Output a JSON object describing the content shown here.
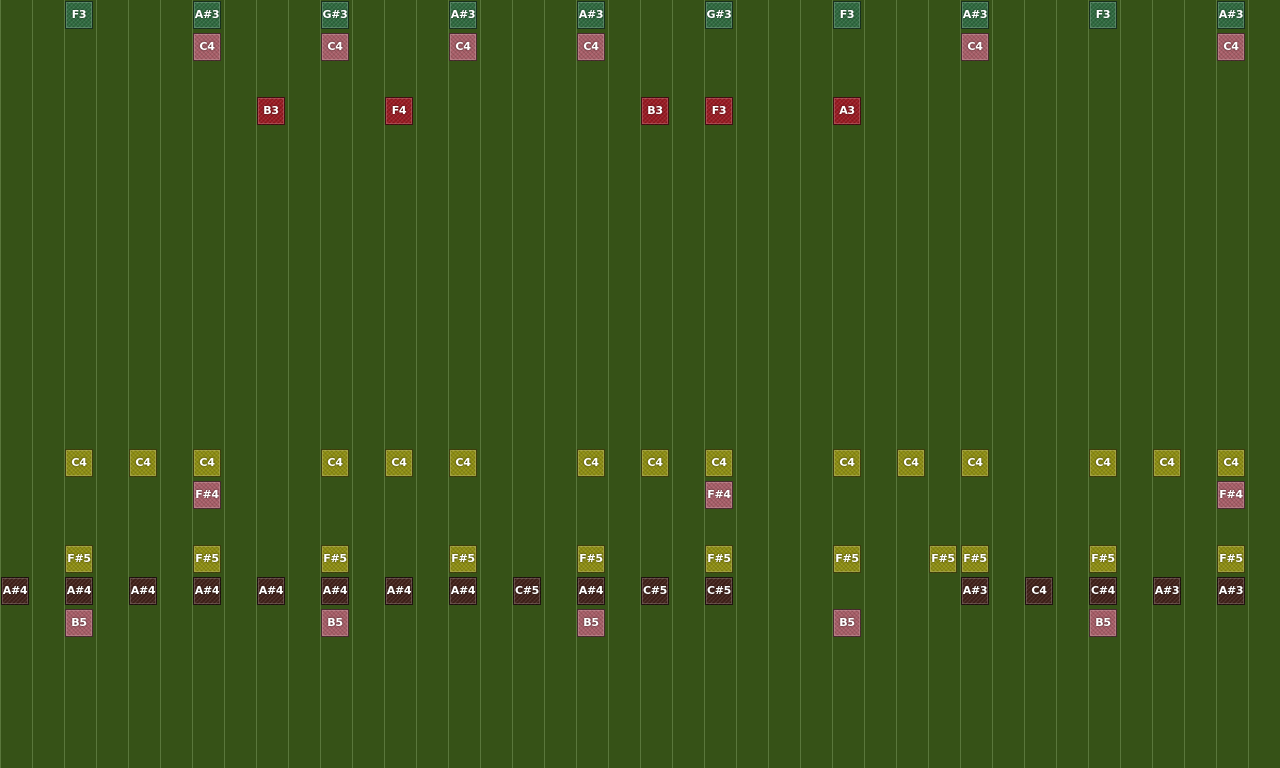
{
  "board": {
    "columns": 40,
    "lanes": 24
  },
  "palette": {
    "green": "#2f6a3f",
    "pink": "#a85e68",
    "red": "#9a1a22",
    "yellow": "#8e8e12",
    "maroon": "#42211a"
  },
  "notes": [
    {
      "label": "F3",
      "color": "green",
      "col": 2,
      "lane": 0
    },
    {
      "label": "A#3",
      "color": "green",
      "col": 6,
      "lane": 0
    },
    {
      "label": "G#3",
      "color": "green",
      "col": 10,
      "lane": 0
    },
    {
      "label": "A#3",
      "color": "green",
      "col": 14,
      "lane": 0
    },
    {
      "label": "A#3",
      "color": "green",
      "col": 18,
      "lane": 0
    },
    {
      "label": "G#3",
      "color": "green",
      "col": 22,
      "lane": 0
    },
    {
      "label": "F3",
      "color": "green",
      "col": 26,
      "lane": 0
    },
    {
      "label": "A#3",
      "color": "green",
      "col": 30,
      "lane": 0
    },
    {
      "label": "F3",
      "color": "green",
      "col": 34,
      "lane": 0
    },
    {
      "label": "A#3",
      "color": "green",
      "col": 38,
      "lane": 0
    },
    {
      "label": "C4",
      "color": "pink",
      "col": 6,
      "lane": 1
    },
    {
      "label": "C4",
      "color": "pink",
      "col": 10,
      "lane": 1
    },
    {
      "label": "C4",
      "color": "pink",
      "col": 14,
      "lane": 1
    },
    {
      "label": "C4",
      "color": "pink",
      "col": 18,
      "lane": 1
    },
    {
      "label": "C4",
      "color": "pink",
      "col": 30,
      "lane": 1
    },
    {
      "label": "C4",
      "color": "pink",
      "col": 38,
      "lane": 1
    },
    {
      "label": "B3",
      "color": "red",
      "col": 8,
      "lane": 3
    },
    {
      "label": "F4",
      "color": "red",
      "col": 12,
      "lane": 3
    },
    {
      "label": "B3",
      "color": "red",
      "col": 20,
      "lane": 3
    },
    {
      "label": "F3",
      "color": "red",
      "col": 22,
      "lane": 3
    },
    {
      "label": "A3",
      "color": "red",
      "col": 26,
      "lane": 3
    },
    {
      "label": "C4",
      "color": "yellow",
      "col": 2,
      "lane": 14
    },
    {
      "label": "C4",
      "color": "yellow",
      "col": 4,
      "lane": 14
    },
    {
      "label": "C4",
      "color": "yellow",
      "col": 6,
      "lane": 14
    },
    {
      "label": "C4",
      "color": "yellow",
      "col": 10,
      "lane": 14
    },
    {
      "label": "C4",
      "color": "yellow",
      "col": 12,
      "lane": 14
    },
    {
      "label": "C4",
      "color": "yellow",
      "col": 14,
      "lane": 14
    },
    {
      "label": "C4",
      "color": "yellow",
      "col": 18,
      "lane": 14
    },
    {
      "label": "C4",
      "color": "yellow",
      "col": 20,
      "lane": 14
    },
    {
      "label": "C4",
      "color": "yellow",
      "col": 22,
      "lane": 14
    },
    {
      "label": "C4",
      "color": "yellow",
      "col": 26,
      "lane": 14
    },
    {
      "label": "C4",
      "color": "yellow",
      "col": 28,
      "lane": 14
    },
    {
      "label": "C4",
      "color": "yellow",
      "col": 30,
      "lane": 14
    },
    {
      "label": "C4",
      "color": "yellow",
      "col": 34,
      "lane": 14
    },
    {
      "label": "C4",
      "color": "yellow",
      "col": 36,
      "lane": 14
    },
    {
      "label": "C4",
      "color": "yellow",
      "col": 38,
      "lane": 14
    },
    {
      "label": "F#4",
      "color": "pink",
      "col": 6,
      "lane": 15
    },
    {
      "label": "F#4",
      "color": "pink",
      "col": 22,
      "lane": 15
    },
    {
      "label": "F#4",
      "color": "pink",
      "col": 38,
      "lane": 15
    },
    {
      "label": "F#5",
      "color": "yellow",
      "col": 2,
      "lane": 17
    },
    {
      "label": "F#5",
      "color": "yellow",
      "col": 6,
      "lane": 17
    },
    {
      "label": "F#5",
      "color": "yellow",
      "col": 10,
      "lane": 17
    },
    {
      "label": "F#5",
      "color": "yellow",
      "col": 14,
      "lane": 17
    },
    {
      "label": "F#5",
      "color": "yellow",
      "col": 18,
      "lane": 17
    },
    {
      "label": "F#5",
      "color": "yellow",
      "col": 22,
      "lane": 17
    },
    {
      "label": "F#5",
      "color": "yellow",
      "col": 26,
      "lane": 17
    },
    {
      "label": "F#5",
      "color": "yellow",
      "col": 29,
      "lane": 17
    },
    {
      "label": "F#5",
      "color": "yellow",
      "col": 30,
      "lane": 17
    },
    {
      "label": "F#5",
      "color": "yellow",
      "col": 34,
      "lane": 17
    },
    {
      "label": "F#5",
      "color": "yellow",
      "col": 38,
      "lane": 17
    },
    {
      "label": "A#4",
      "color": "maroon",
      "col": 0,
      "lane": 18
    },
    {
      "label": "A#4",
      "color": "maroon",
      "col": 2,
      "lane": 18
    },
    {
      "label": "A#4",
      "color": "maroon",
      "col": 4,
      "lane": 18
    },
    {
      "label": "A#4",
      "color": "maroon",
      "col": 6,
      "lane": 18
    },
    {
      "label": "A#4",
      "color": "maroon",
      "col": 8,
      "lane": 18
    },
    {
      "label": "A#4",
      "color": "maroon",
      "col": 10,
      "lane": 18
    },
    {
      "label": "A#4",
      "color": "maroon",
      "col": 12,
      "lane": 18
    },
    {
      "label": "A#4",
      "color": "maroon",
      "col": 14,
      "lane": 18
    },
    {
      "label": "C#5",
      "color": "maroon",
      "col": 16,
      "lane": 18
    },
    {
      "label": "A#4",
      "color": "maroon",
      "col": 18,
      "lane": 18
    },
    {
      "label": "C#5",
      "color": "maroon",
      "col": 20,
      "lane": 18
    },
    {
      "label": "C#5",
      "color": "maroon",
      "col": 22,
      "lane": 18
    },
    {
      "label": "A#3",
      "color": "maroon",
      "col": 30,
      "lane": 18
    },
    {
      "label": "C4",
      "color": "maroon",
      "col": 32,
      "lane": 18
    },
    {
      "label": "C#4",
      "color": "maroon",
      "col": 34,
      "lane": 18
    },
    {
      "label": "A#3",
      "color": "maroon",
      "col": 36,
      "lane": 18
    },
    {
      "label": "A#3",
      "color": "maroon",
      "col": 38,
      "lane": 18
    },
    {
      "label": "B5",
      "color": "pink",
      "col": 2,
      "lane": 19
    },
    {
      "label": "B5",
      "color": "pink",
      "col": 10,
      "lane": 19
    },
    {
      "label": "B5",
      "color": "pink",
      "col": 18,
      "lane": 19
    },
    {
      "label": "B5",
      "color": "pink",
      "col": 26,
      "lane": 19
    },
    {
      "label": "B5",
      "color": "pink",
      "col": 34,
      "lane": 19
    }
  ]
}
